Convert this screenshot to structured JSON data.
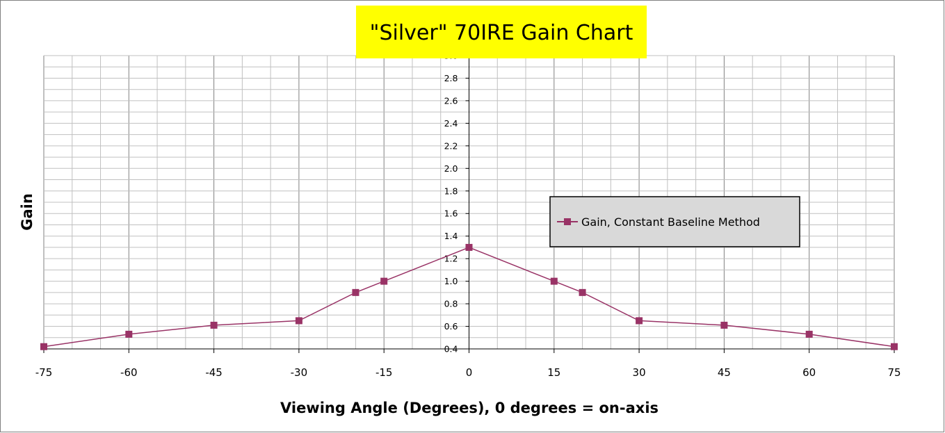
{
  "chart_data": {
    "type": "line",
    "title": "\"Silver\" 70IRE Gain Chart",
    "xlabel": "Viewing Angle (Degrees), 0 degrees = on-axis",
    "ylabel": "Gain",
    "xlim": [
      -75,
      75
    ],
    "ylim": [
      0.4,
      3.0
    ],
    "x_ticks": [
      "-75",
      "-60",
      "-45",
      "-30",
      "-15",
      "0",
      "15",
      "30",
      "45",
      "60",
      "75"
    ],
    "y_ticks": [
      "0.4",
      "0.6",
      "0.8",
      "1.0",
      "1.2",
      "1.4",
      "1.6",
      "1.8",
      "2.0",
      "2.2",
      "2.4",
      "2.6",
      "2.8",
      "3.0"
    ],
    "grid": true,
    "legend_position": "right",
    "series": [
      {
        "name": "Gain, Constant Baseline Method",
        "color": "#993366",
        "x": [
          -75,
          -60,
          -45,
          -30,
          -20,
          -15,
          0,
          15,
          20,
          30,
          45,
          60,
          75
        ],
        "y": [
          0.42,
          0.53,
          0.61,
          0.65,
          0.9,
          1.0,
          1.3,
          1.0,
          0.9,
          0.65,
          0.61,
          0.53,
          0.42
        ]
      }
    ],
    "colors": {
      "title_background": "#ffff00",
      "legend_background": "#d9d9d9",
      "major_grid": "#808080",
      "minor_grid": "#c0c0c0"
    }
  }
}
